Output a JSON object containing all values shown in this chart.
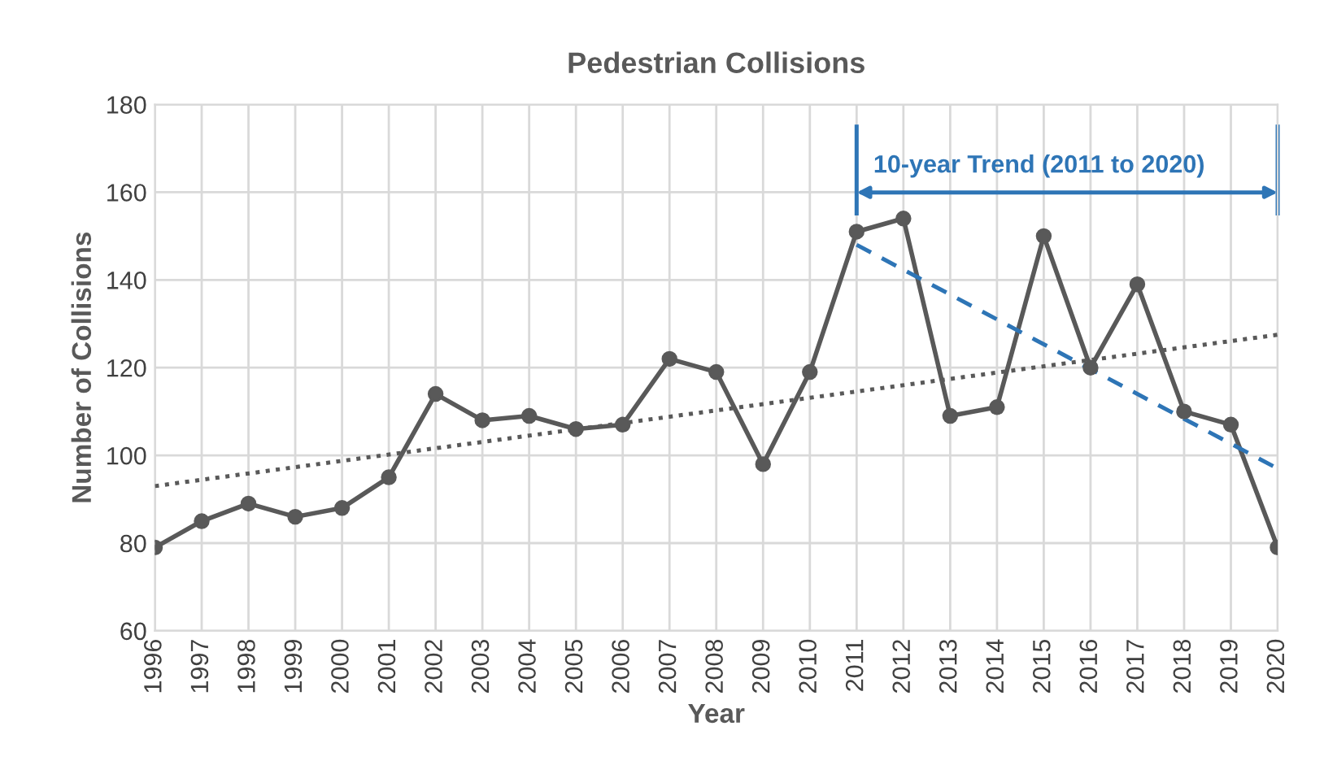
{
  "chart_data": {
    "type": "line",
    "title": "Pedestrian Collisions",
    "xlabel": "Year",
    "ylabel": "Number of Collisions",
    "x": [
      1996,
      1997,
      1998,
      1999,
      2000,
      2001,
      2002,
      2003,
      2004,
      2005,
      2006,
      2007,
      2008,
      2009,
      2010,
      2011,
      2012,
      2013,
      2014,
      2015,
      2016,
      2017,
      2018,
      2019,
      2020
    ],
    "series": [
      {
        "color": "#595959",
        "marker": "circle",
        "line_style": "solid",
        "values": [
          79,
          85,
          89,
          86,
          88,
          95,
          114,
          108,
          109,
          106,
          107,
          122,
          119,
          98,
          119,
          151,
          154,
          109,
          111,
          150,
          120,
          139,
          110,
          107,
          79
        ]
      },
      {
        "type": "line",
        "color": "#595959",
        "line_style": "dotted",
        "marker": "none",
        "x": [
          1996,
          2020
        ],
        "values": [
          93,
          127.5
        ]
      },
      {
        "type": "line",
        "color": "#2e75b6",
        "line_style": "dashed",
        "marker": "none",
        "x": [
          2011,
          2020
        ],
        "values": [
          148,
          97
        ]
      }
    ],
    "annotations": [
      "10-year Trend (2011 to 2020)"
    ],
    "xlim": [
      1996,
      2020
    ],
    "xticks": [
      1996,
      1997,
      1998,
      1999,
      2000,
      2001,
      2002,
      2003,
      2004,
      2005,
      2006,
      2007,
      2008,
      2009,
      2010,
      2011,
      2012,
      2013,
      2014,
      2015,
      2016,
      2017,
      2018,
      2019,
      2020
    ],
    "ylim": [
      60,
      180
    ],
    "yticks": [
      60,
      80,
      100,
      120,
      140,
      160,
      180
    ],
    "grid": true,
    "legend": false
  }
}
